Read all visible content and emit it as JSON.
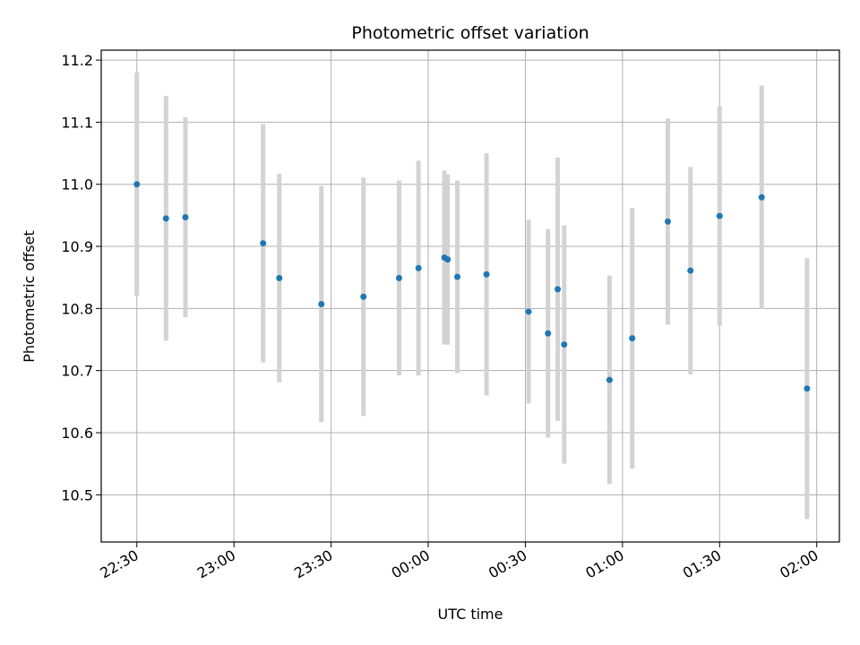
{
  "chart_data": {
    "type": "scatter",
    "title": "Photometric offset variation",
    "xlabel": "UTC time",
    "ylabel": "Photometric offset",
    "x_unit": "UTC clock time (HH:MM), spanning midnight",
    "xlim": [
      "22:19",
      "02:07"
    ],
    "ylim": [
      10.424,
      11.216
    ],
    "x_ticks": [
      "22:30",
      "23:00",
      "23:30",
      "00:00",
      "00:30",
      "01:00",
      "01:30",
      "02:00"
    ],
    "y_ticks": [
      "10.5",
      "10.6",
      "10.7",
      "10.8",
      "10.9",
      "11.0",
      "11.1",
      "11.2"
    ],
    "grid": true,
    "marker_color": "#1f77b4",
    "errorbar_color": "#d3d3d3",
    "points": [
      {
        "x": "22:30",
        "y": 11.0,
        "err": 0.18
      },
      {
        "x": "22:39",
        "y": 10.945,
        "err": 0.197
      },
      {
        "x": "22:45",
        "y": 10.947,
        "err": 0.161
      },
      {
        "x": "23:09",
        "y": 10.905,
        "err": 0.192
      },
      {
        "x": "23:14",
        "y": 10.849,
        "err": 0.168
      },
      {
        "x": "23:27",
        "y": 10.807,
        "err": 0.19
      },
      {
        "x": "23:40",
        "y": 10.819,
        "err": 0.192
      },
      {
        "x": "23:51",
        "y": 10.849,
        "err": 0.157
      },
      {
        "x": "23:57",
        "y": 10.865,
        "err": 0.173
      },
      {
        "x": "00:05",
        "y": 10.882,
        "err": 0.14
      },
      {
        "x": "00:06",
        "y": 10.879,
        "err": 0.137
      },
      {
        "x": "00:09",
        "y": 10.851,
        "err": 0.155
      },
      {
        "x": "00:18",
        "y": 10.855,
        "err": 0.195
      },
      {
        "x": "00:31",
        "y": 10.795,
        "err": 0.148
      },
      {
        "x": "00:37",
        "y": 10.76,
        "err": 0.168
      },
      {
        "x": "00:40",
        "y": 10.831,
        "err": 0.212
      },
      {
        "x": "00:42",
        "y": 10.742,
        "err": 0.192
      },
      {
        "x": "00:56",
        "y": 10.685,
        "err": 0.168
      },
      {
        "x": "01:03",
        "y": 10.752,
        "err": 0.21
      },
      {
        "x": "01:14",
        "y": 10.94,
        "err": 0.166
      },
      {
        "x": "01:21",
        "y": 10.861,
        "err": 0.167
      },
      {
        "x": "01:30",
        "y": 10.949,
        "err": 0.177
      },
      {
        "x": "01:43",
        "y": 10.979,
        "err": 0.18
      },
      {
        "x": "01:57",
        "y": 10.671,
        "err": 0.21
      }
    ]
  }
}
